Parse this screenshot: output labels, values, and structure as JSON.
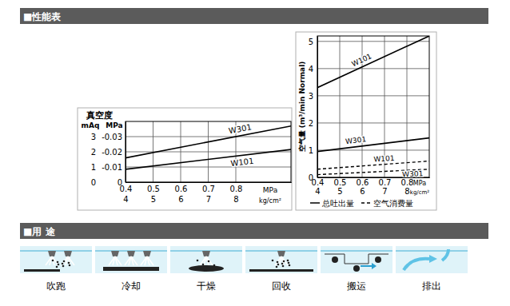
{
  "headers": {
    "performance": "■性能表",
    "usage": "■用 途"
  },
  "chart_data": [
    {
      "type": "line",
      "title": "真空度",
      "x_label": "MPa",
      "x2_label": "kg/cm²",
      "y_label": "mAq",
      "y2_label": "MPa",
      "x": [
        0.4,
        1.0
      ],
      "xlim": [
        0.4,
        1.0
      ],
      "xticks": [
        0.4,
        0.5,
        0.6,
        0.7,
        0.8
      ],
      "x2lim": [
        4,
        10
      ],
      "x2ticks": [
        4,
        5,
        6,
        7,
        8
      ],
      "ylim": [
        0,
        4
      ],
      "yticks": [
        0,
        1,
        2,
        3
      ],
      "y2lim": [
        0,
        -0.04
      ],
      "y2ticks": [
        0,
        -0.01,
        -0.02,
        -0.03
      ],
      "grid": true,
      "series": [
        {
          "name": "W301",
          "color": "#000000",
          "line_style": "solid",
          "values": [
            1.6,
            3.7
          ]
        },
        {
          "name": "W101",
          "color": "#000000",
          "line_style": "solid",
          "values": [
            0.85,
            2.15
          ]
        }
      ]
    },
    {
      "type": "line",
      "y_label": "空气量 (m³/min Normal)",
      "x_label": "MPa",
      "x2_label": "kg/cm²",
      "x": [
        0.4,
        0.9
      ],
      "xlim": [
        0.4,
        0.9
      ],
      "xticks": [
        0.4,
        0.5,
        0.6,
        0.7,
        0.8
      ],
      "x2lim": [
        4,
        9
      ],
      "x2ticks": [
        4,
        5,
        6,
        7,
        8
      ],
      "ylim": [
        0,
        5.2
      ],
      "yticks": [
        0,
        1,
        2,
        3,
        4,
        5
      ],
      "grid": true,
      "legend_entries": [
        {
          "label": "总吐出量",
          "line_style": "solid"
        },
        {
          "label": "空气消费量",
          "line_style": "dashed"
        }
      ],
      "series": [
        {
          "name": "W101",
          "color": "#000000",
          "line_style": "solid",
          "values": [
            3.3,
            5.2
          ]
        },
        {
          "name": "W301",
          "color": "#000000",
          "line_style": "solid",
          "values": [
            0.95,
            1.45
          ]
        },
        {
          "name": "W101",
          "color": "#000000",
          "line_style": "dashed",
          "values": [
            0.3,
            0.6
          ]
        },
        {
          "name": "W301",
          "color": "#000000",
          "line_style": "dashed",
          "values": [
            0.1,
            0.3
          ]
        }
      ]
    }
  ],
  "usage": [
    "吹跑",
    "冷却",
    "干燥",
    "回收",
    "搬运",
    "排出"
  ]
}
